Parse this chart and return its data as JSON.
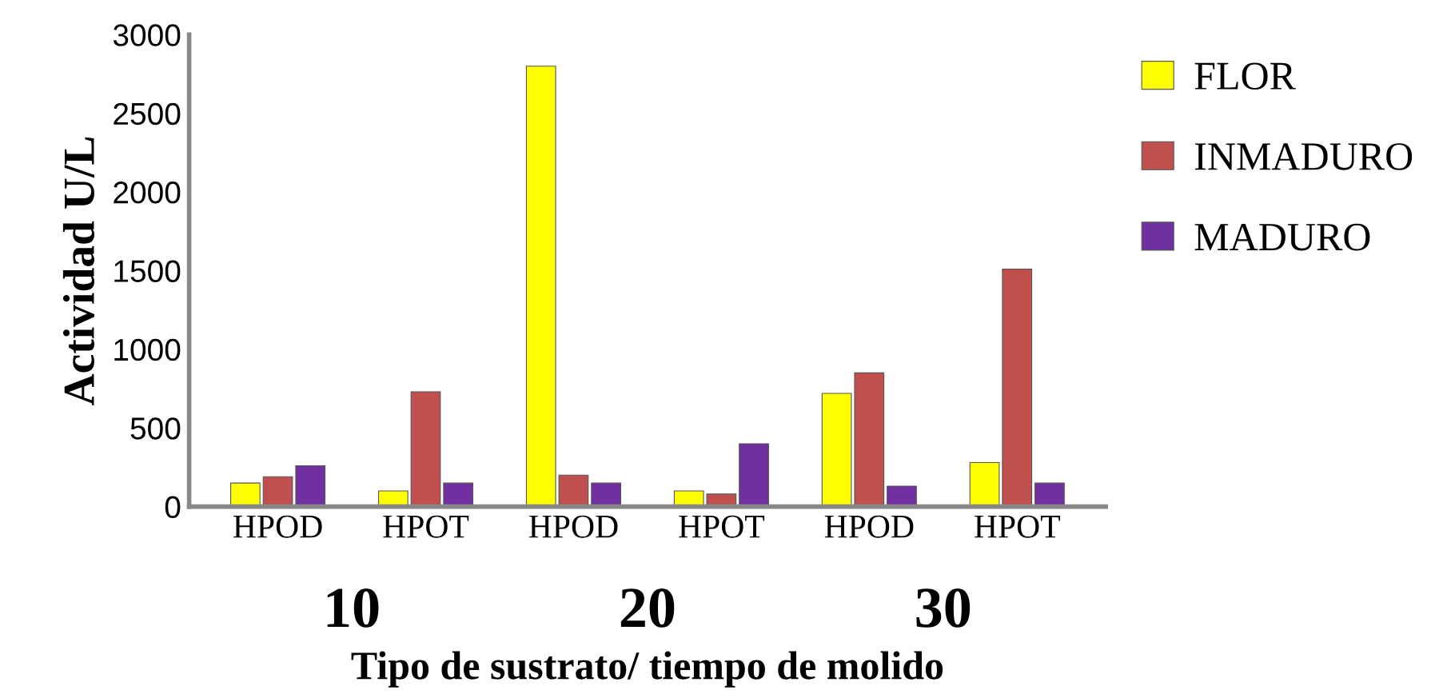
{
  "chart_data": {
    "type": "bar",
    "xlabel": "Tipo de sustrato/ tiempo de molido",
    "ylabel": "Actividad U/L",
    "categories": [
      "HPOD",
      "HPOT",
      "HPOD",
      "HPOT",
      "HPOD",
      "HPOT"
    ],
    "series": [
      {
        "name": "FLOR",
        "color": "#ffff00",
        "values": [
          150,
          100,
          2800,
          100,
          720,
          280
        ]
      },
      {
        "name": "INMADURO",
        "color": "#c0504d",
        "values": [
          190,
          730,
          200,
          80,
          850,
          1510
        ]
      },
      {
        "name": "MADURO",
        "color": "#7030a0",
        "values": [
          260,
          150,
          150,
          400,
          130,
          150
        ]
      }
    ],
    "annotations": [
      "10",
      "20",
      "30"
    ],
    "ylim": [
      0,
      3000
    ],
    "yticks": [
      0,
      500,
      1000,
      1500,
      2000,
      2500,
      3000
    ],
    "grid": false,
    "legend": "top right"
  }
}
